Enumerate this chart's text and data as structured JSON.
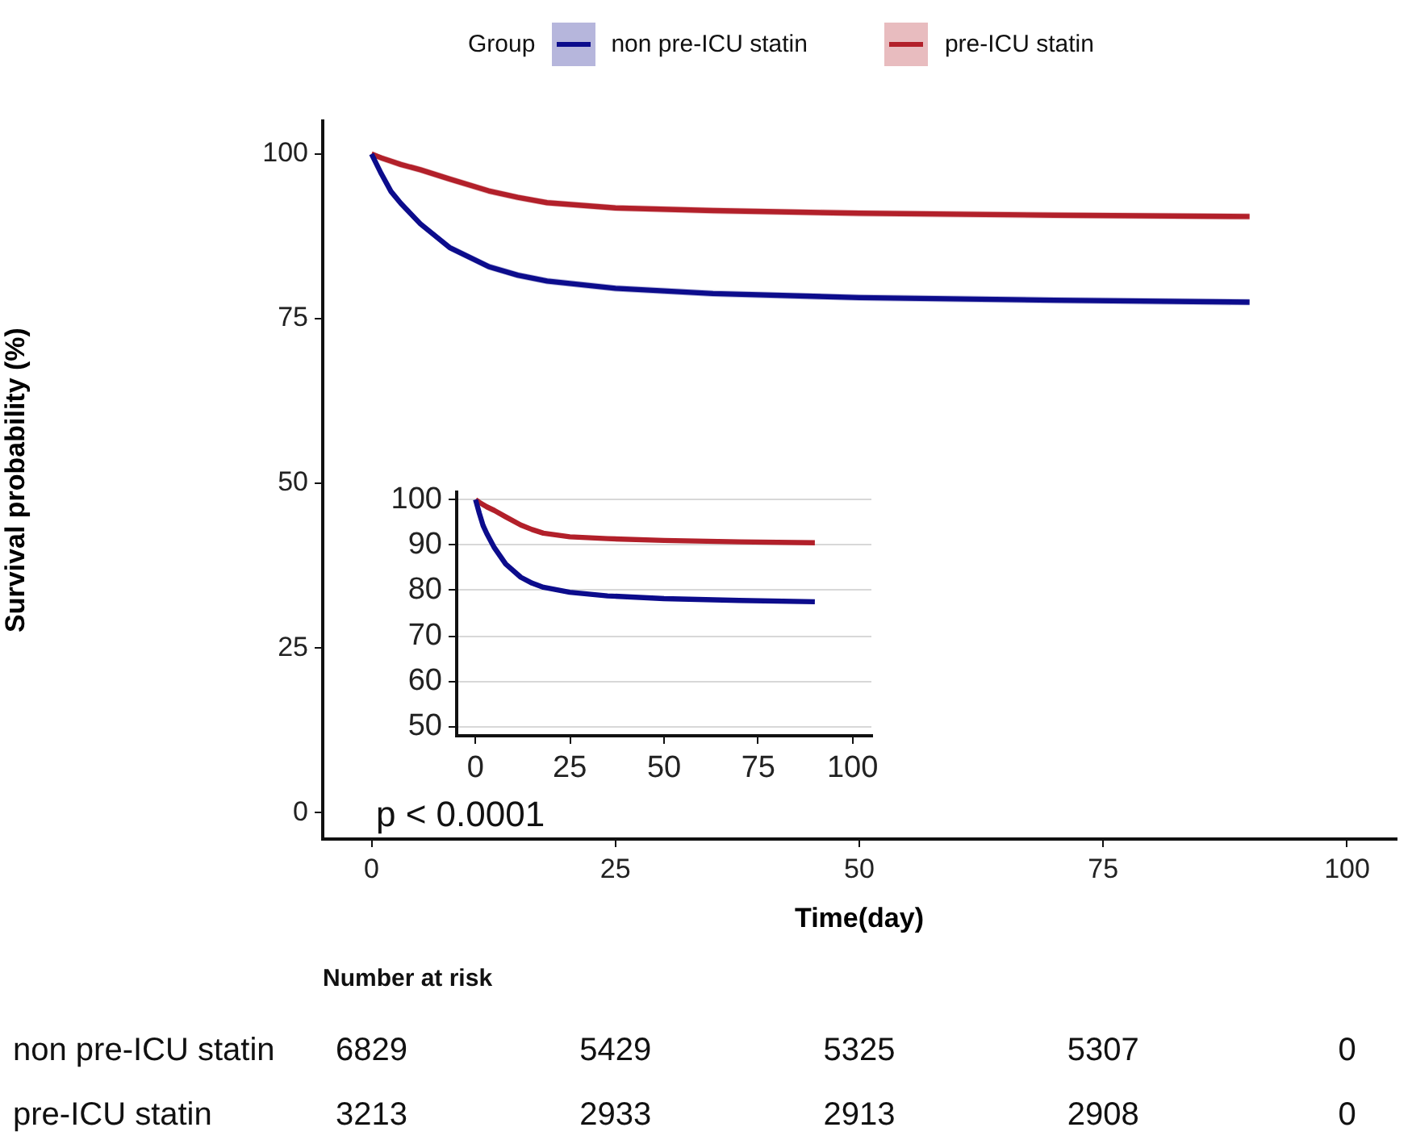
{
  "chart_data": [
    {
      "type": "line",
      "ylabel": "Survival probability (%)",
      "xlabel": "Time(day)",
      "legend": "top",
      "legend_title": "Group",
      "xlim": [
        -5,
        105
      ],
      "ylim": [
        -4,
        105
      ],
      "xticks": [
        0,
        25,
        50,
        75,
        100
      ],
      "yticks": [
        0,
        25,
        50,
        75,
        100
      ],
      "grid": false,
      "marker": "none",
      "line_style": "solid",
      "annotations": [
        "p < 0.0001"
      ],
      "x": [
        0,
        1,
        2,
        3,
        5,
        8,
        12,
        15,
        18,
        25,
        35,
        50,
        70,
        90
      ],
      "series": [
        {
          "name": "non pre-ICU statin",
          "color": "#0c0c8c",
          "values": [
            100,
            97,
            94.3,
            92.5,
            89.4,
            85.8,
            82.9,
            81.6,
            80.7,
            79.6,
            78.8,
            78.2,
            77.8,
            77.5
          ],
          "lower": [
            100,
            96.5,
            93.8,
            92,
            88.9,
            85.3,
            82.4,
            81.1,
            80.2,
            79.1,
            78.3,
            77.7,
            77.3,
            77
          ],
          "upper": [
            100,
            97.5,
            94.8,
            93,
            89.9,
            86.3,
            83.4,
            82.1,
            81.2,
            80.1,
            79.3,
            78.7,
            78.3,
            78
          ]
        },
        {
          "name": "pre-ICU statin",
          "color": "#b2202a",
          "values": [
            100,
            99.4,
            98.9,
            98.4,
            97.6,
            96.2,
            94.4,
            93.4,
            92.6,
            91.8,
            91.4,
            91,
            90.7,
            90.5
          ],
          "lower": [
            100,
            98.9,
            98.4,
            97.9,
            97.1,
            95.7,
            93.9,
            92.9,
            92.1,
            91.3,
            90.9,
            90.5,
            90.2,
            90
          ],
          "upper": [
            100,
            99.9,
            99.4,
            98.9,
            98.1,
            96.7,
            94.9,
            93.9,
            93.1,
            92.3,
            91.9,
            91.5,
            91.2,
            91
          ]
        }
      ]
    },
    {
      "type": "line",
      "xlim": [
        -5,
        105
      ],
      "ylim": [
        48,
        101.5
      ],
      "xticks": [
        0,
        25,
        50,
        75,
        100
      ],
      "yticks": [
        50,
        60,
        70,
        80,
        90,
        100
      ],
      "grid": "y",
      "marker": "none",
      "line_style": "solid",
      "x": [
        0,
        1,
        2,
        3,
        5,
        8,
        12,
        15,
        18,
        25,
        35,
        50,
        70,
        90
      ],
      "series": [
        {
          "color": "#0c0c8c",
          "values": [
            100,
            97,
            94.3,
            92.5,
            89.4,
            85.8,
            82.9,
            81.6,
            80.7,
            79.6,
            78.8,
            78.2,
            77.8,
            77.5
          ]
        },
        {
          "color": "#b2202a",
          "values": [
            100,
            99.4,
            98.9,
            98.4,
            97.6,
            96.2,
            94.4,
            93.4,
            92.6,
            91.8,
            91.4,
            91,
            90.7,
            90.5
          ]
        }
      ]
    },
    {
      "type": "other",
      "title": "Number at risk",
      "annotations": [
        "non pre-ICU statin",
        "6829",
        "5429",
        "5325",
        "5307",
        "0",
        "pre-ICU statin",
        "3213",
        "2933",
        "2913",
        "2908",
        "0"
      ]
    }
  ]
}
